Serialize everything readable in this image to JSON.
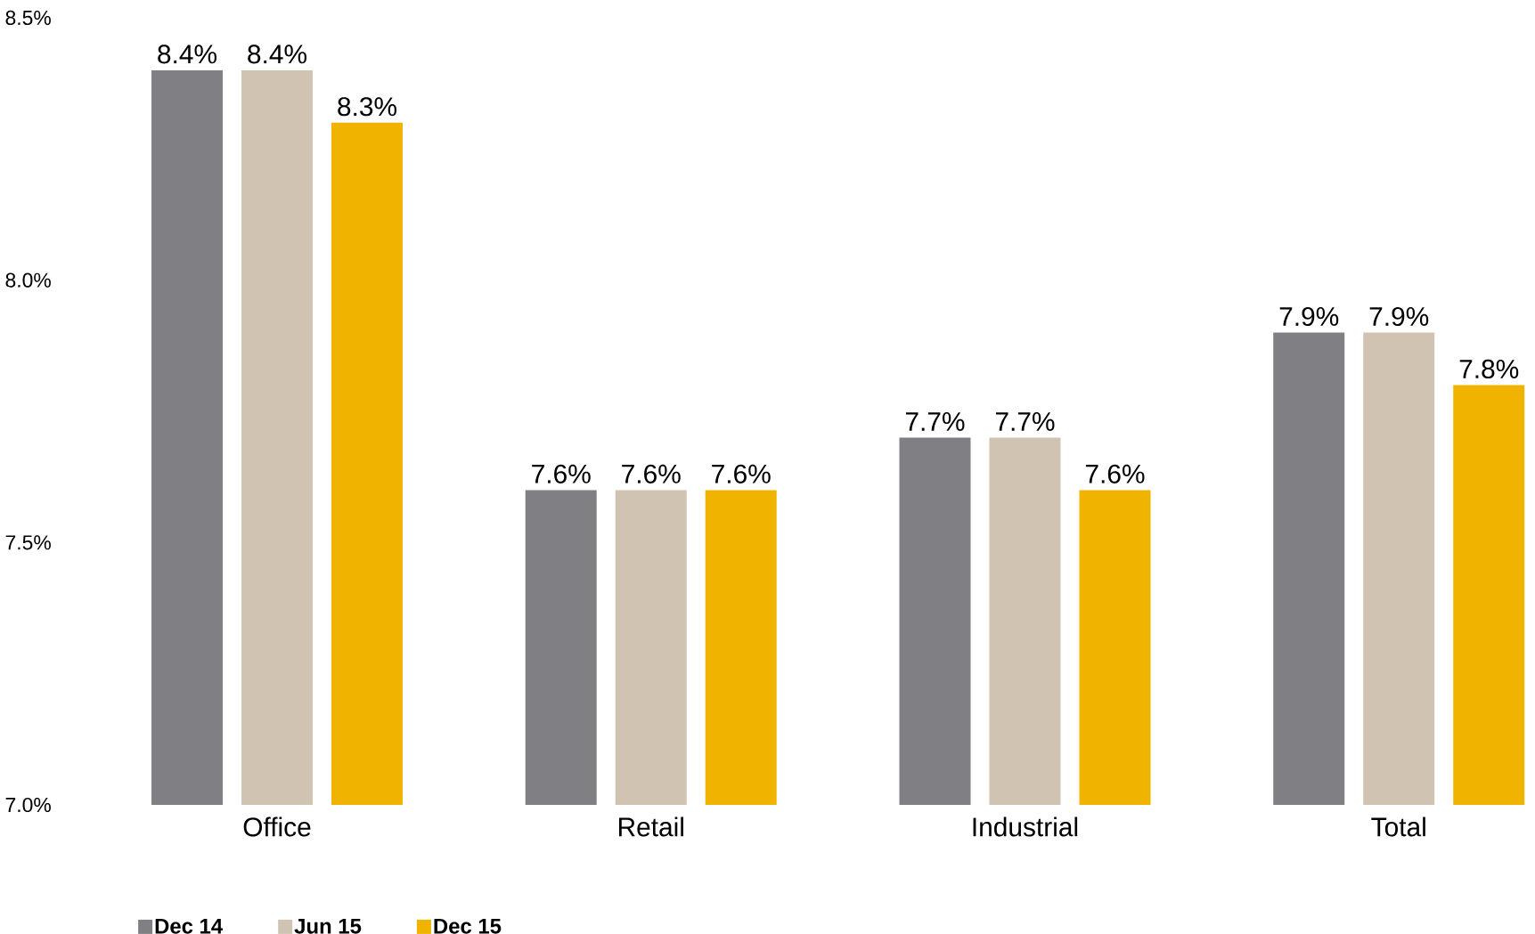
{
  "chart_data": {
    "type": "bar",
    "categories": [
      "Office",
      "Retail",
      "Industrial",
      "Total"
    ],
    "series": [
      {
        "name": "Dec 14",
        "color": "#808084",
        "values": [
          8.4,
          7.6,
          7.7,
          7.9
        ],
        "value_labels": [
          "8.4%",
          "7.6%",
          "7.7%",
          "7.9%"
        ]
      },
      {
        "name": "Jun 15",
        "color": "#d0c3b2",
        "values": [
          8.4,
          7.6,
          7.7,
          7.9
        ],
        "value_labels": [
          "8.4%",
          "7.6%",
          "7.7%",
          "7.9%"
        ]
      },
      {
        "name": "Dec 15",
        "color": "#f0b400",
        "values": [
          8.3,
          7.6,
          7.6,
          7.8
        ],
        "value_labels": [
          "8.3%",
          "7.6%",
          "7.6%",
          "7.8%"
        ]
      }
    ],
    "ylim": [
      7.0,
      8.5
    ],
    "yticks": [
      {
        "value": 7.0,
        "label": "7.0%"
      },
      {
        "value": 7.5,
        "label": "7.5%"
      },
      {
        "value": 8.0,
        "label": "8.0%"
      },
      {
        "value": 8.5,
        "label": "8.5%"
      }
    ],
    "grid": false,
    "legend": "bottom left"
  }
}
